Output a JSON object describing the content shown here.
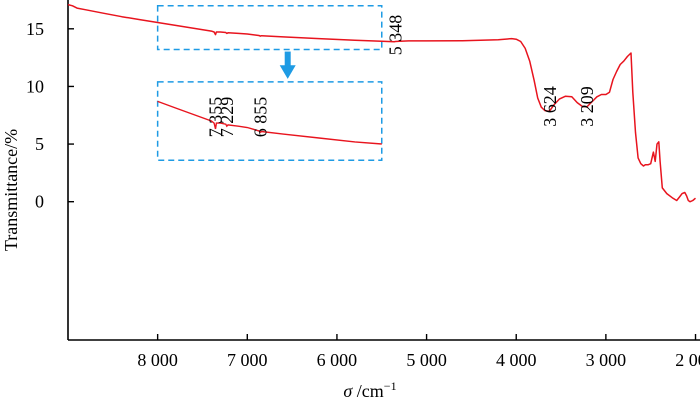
{
  "chart_data": {
    "type": "line",
    "xlabel_var": "σ",
    "xlabel_unit": " /cm",
    "xlabel_sup": "−1",
    "ylabel": "Transmittance/%",
    "xlim": [
      9000,
      1950
    ],
    "ylim": [
      -12,
      17.5
    ],
    "xticks": [
      8000,
      7000,
      6000,
      5000,
      4000,
      3000,
      2000
    ],
    "xtick_labels": [
      "8 000",
      "7 000",
      "6 000",
      "5 000",
      "4 000",
      "3 000",
      "2 000"
    ],
    "yticks": [
      0,
      5,
      10,
      15
    ],
    "ytick_labels": [
      "0",
      "5",
      "10",
      "15"
    ],
    "grid": false,
    "series": [
      {
        "color": "#e8141e",
        "points": [
          [
            9000,
            17.1
          ],
          [
            8950,
            17.0
          ],
          [
            8900,
            16.8
          ],
          [
            8800,
            16.65
          ],
          [
            8600,
            16.35
          ],
          [
            8400,
            16.05
          ],
          [
            8200,
            15.8
          ],
          [
            8000,
            15.55
          ],
          [
            7800,
            15.3
          ],
          [
            7600,
            15.05
          ],
          [
            7400,
            14.8
          ],
          [
            7370,
            14.72
          ],
          [
            7355,
            14.5
          ],
          [
            7345,
            14.72
          ],
          [
            7300,
            14.72
          ],
          [
            7240,
            14.68
          ],
          [
            7229,
            14.6
          ],
          [
            7215,
            14.65
          ],
          [
            7100,
            14.6
          ],
          [
            7000,
            14.55
          ],
          [
            6870,
            14.42
          ],
          [
            6855,
            14.37
          ],
          [
            6840,
            14.4
          ],
          [
            6600,
            14.3
          ],
          [
            6200,
            14.15
          ],
          [
            5800,
            14.0
          ],
          [
            5500,
            13.92
          ],
          [
            5360,
            13.88
          ],
          [
            5348,
            13.9
          ],
          [
            5300,
            13.92
          ],
          [
            5200,
            13.95
          ],
          [
            5000,
            13.95
          ],
          [
            4600,
            13.97
          ],
          [
            4400,
            14.0
          ],
          [
            4200,
            14.05
          ],
          [
            4050,
            14.15
          ],
          [
            4000,
            14.1
          ],
          [
            3950,
            13.9
          ],
          [
            3900,
            13.3
          ],
          [
            3850,
            12.2
          ],
          [
            3800,
            10.5
          ],
          [
            3760,
            9.0
          ],
          [
            3720,
            8.2
          ],
          [
            3680,
            7.9
          ],
          [
            3640,
            7.85
          ],
          [
            3624,
            7.9
          ],
          [
            3580,
            8.4
          ],
          [
            3520,
            8.9
          ],
          [
            3450,
            9.15
          ],
          [
            3380,
            9.1
          ],
          [
            3320,
            8.6
          ],
          [
            3260,
            8.25
          ],
          [
            3209,
            8.25
          ],
          [
            3150,
            8.7
          ],
          [
            3100,
            9.1
          ],
          [
            3050,
            9.3
          ],
          [
            3000,
            9.3
          ],
          [
            2960,
            9.5
          ],
          [
            2920,
            10.6
          ],
          [
            2880,
            11.3
          ],
          [
            2840,
            11.9
          ],
          [
            2800,
            12.2
          ],
          [
            2760,
            12.6
          ],
          [
            2720,
            12.9
          ],
          [
            2700,
            9.5
          ],
          [
            2670,
            6.0
          ],
          [
            2640,
            3.8
          ],
          [
            2610,
            3.3
          ],
          [
            2580,
            3.1
          ],
          [
            2560,
            3.2
          ],
          [
            2530,
            3.2
          ],
          [
            2500,
            3.3
          ],
          [
            2470,
            4.3
          ],
          [
            2450,
            3.5
          ],
          [
            2430,
            5.0
          ],
          [
            2410,
            5.2
          ],
          [
            2395,
            3.5
          ],
          [
            2370,
            1.2
          ],
          [
            2320,
            0.7
          ],
          [
            2260,
            0.35
          ],
          [
            2210,
            0.1
          ],
          [
            2180,
            0.4
          ],
          [
            2150,
            0.7
          ],
          [
            2120,
            0.8
          ],
          [
            2100,
            0.5
          ],
          [
            2080,
            0.1
          ],
          [
            2060,
            0.0
          ],
          [
            2030,
            0.1
          ],
          [
            2000,
            0.3
          ]
        ]
      }
    ],
    "annotations": [
      {
        "text": "7 355",
        "x": 7355,
        "y": 5.6
      },
      {
        "text": "7 229",
        "x": 7229,
        "y": 5.6
      },
      {
        "text": "6 855",
        "x": 6855,
        "y": 5.6
      },
      {
        "text": "5 348",
        "x": 5348,
        "y": 12.7
      },
      {
        "text": "3 624",
        "x": 3624,
        "y": 6.5
      },
      {
        "text": "3 209",
        "x": 3209,
        "y": 6.5
      }
    ],
    "inset": {
      "source_box": {
        "x": [
          8000,
          5500
        ],
        "y": [
          13.2,
          17.0
        ]
      },
      "inset_box": {
        "x": [
          8000,
          5500
        ],
        "y": [
          3.6,
          10.4
        ]
      },
      "zoom_y_range": [
        13.6,
        16.0
      ],
      "box_color": "#1e9be4",
      "arrow_color": "#1e9be4"
    }
  }
}
